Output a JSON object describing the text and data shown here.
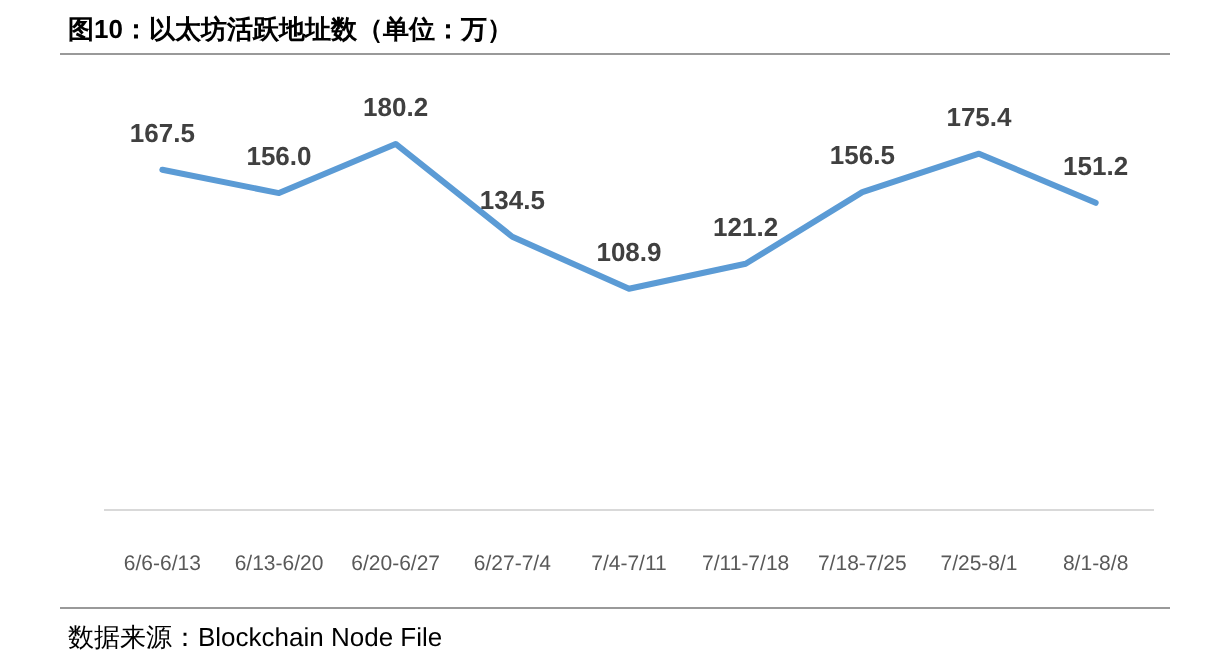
{
  "chart_data": {
    "type": "line",
    "title": "图10：以太坊活跃地址数（单位：万）",
    "categories": [
      "6/6-6/13",
      "6/13-6/20",
      "6/20-6/27",
      "6/27-7/4",
      "7/4-7/11",
      "7/11-7/18",
      "7/18-7/25",
      "7/25-8/1",
      "8/1-8/8"
    ],
    "series": [
      {
        "color": "#5b9bd5",
        "values": [
          167.5,
          156.0,
          180.2,
          134.5,
          108.9,
          121.2,
          156.5,
          175.4,
          151.2
        ],
        "value_labels": [
          "167.5",
          "156.0",
          "180.2",
          "134.5",
          "108.9",
          "121.2",
          "156.5",
          "175.4",
          "151.2"
        ]
      }
    ],
    "annotations": [
      "数据来源：Blockchain Node File"
    ],
    "marker": "none",
    "line_style": "solid"
  }
}
